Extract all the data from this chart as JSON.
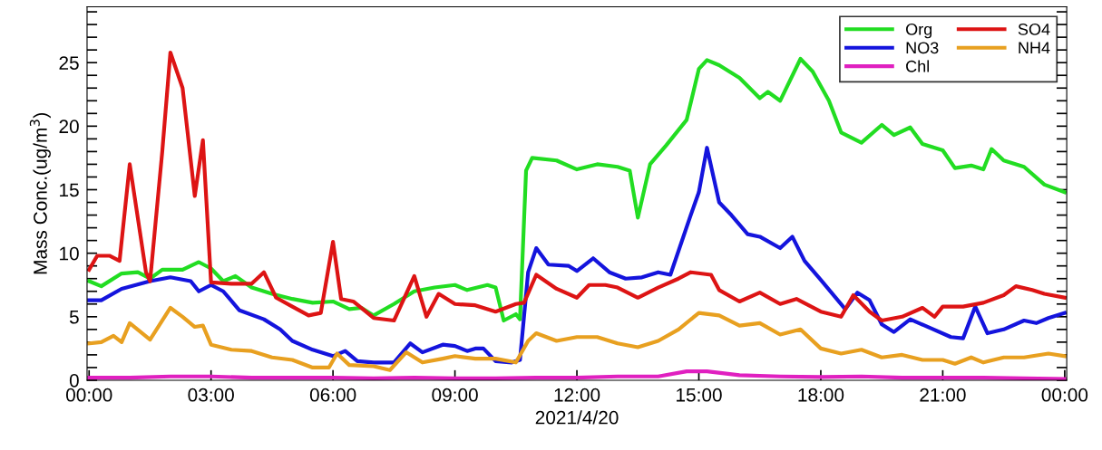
{
  "chart_data": {
    "type": "line",
    "xlabel": "2021/4/20",
    "ylabel": "Mass Conc.(ug/m$^{3}$)",
    "xlim": [
      -0.05,
      24.05
    ],
    "ylim": [
      0,
      29.4
    ],
    "xticks": [
      {
        "value": 0,
        "label": "00:00"
      },
      {
        "value": 3,
        "label": "03:00"
      },
      {
        "value": 6,
        "label": "06:00"
      },
      {
        "value": 9,
        "label": "09:00"
      },
      {
        "value": 12,
        "label": "12:00"
      },
      {
        "value": 15,
        "label": "15:00"
      },
      {
        "value": 18,
        "label": "18:00"
      },
      {
        "value": 21,
        "label": "21:00"
      },
      {
        "value": 24,
        "label": "00:00"
      }
    ],
    "yticks": [
      0,
      {
        "value": 1,
        "label": null
      },
      {
        "value": 2,
        "label": null
      },
      {
        "value": 3,
        "label": null
      },
      {
        "value": 4,
        "label": null
      },
      5,
      {
        "value": 6,
        "label": null
      },
      {
        "value": 7,
        "label": null
      },
      {
        "value": 8,
        "label": null
      },
      {
        "value": 9,
        "label": null
      },
      10,
      {
        "value": 11,
        "label": null
      },
      {
        "value": 12,
        "label": null
      },
      {
        "value": 13,
        "label": null
      },
      {
        "value": 14,
        "label": null
      },
      15,
      {
        "value": 16,
        "label": null
      },
      {
        "value": 17,
        "label": null
      },
      {
        "value": 18,
        "label": null
      },
      {
        "value": 19,
        "label": null
      },
      20,
      {
        "value": 21,
        "label": null
      },
      {
        "value": 22,
        "label": null
      },
      {
        "value": 23,
        "label": null
      },
      {
        "value": 24,
        "label": null
      },
      25,
      {
        "value": 26,
        "label": null
      },
      {
        "value": 27,
        "label": null
      },
      {
        "value": 28,
        "label": null
      },
      {
        "value": 29,
        "label": null
      }
    ],
    "grid": false,
    "legend": "top right",
    "marker": "none",
    "line_style": "solid",
    "series": [
      {
        "name": "Org",
        "color": "#22dd22",
        "x": [
          0,
          0.3,
          0.8,
          1.2,
          1.5,
          1.8,
          2.3,
          2.7,
          3.0,
          3.3,
          3.6,
          4.0,
          4.5,
          5.0,
          5.5,
          6.0,
          6.4,
          6.7,
          7.0,
          7.5,
          8.0,
          8.5,
          9.0,
          9.3,
          9.8,
          10.0,
          10.2,
          10.5,
          10.6,
          10.75,
          10.9,
          11.5,
          12.0,
          12.5,
          13.0,
          13.3,
          13.5,
          13.8,
          14.2,
          14.7,
          15.0,
          15.2,
          15.5,
          16.0,
          16.5,
          16.7,
          17.0,
          17.5,
          17.8,
          18.2,
          18.5,
          19.0,
          19.5,
          19.8,
          20.2,
          20.5,
          21.0,
          21.3,
          21.7,
          22.0,
          22.2,
          22.5,
          23.0,
          23.5,
          24.0
        ],
        "values": [
          7.8,
          7.4,
          8.4,
          8.5,
          8.0,
          8.7,
          8.7,
          9.3,
          8.8,
          7.8,
          8.2,
          7.3,
          6.8,
          6.4,
          6.1,
          6.2,
          5.6,
          5.7,
          5.1,
          6.0,
          7.0,
          7.3,
          7.5,
          7.1,
          7.5,
          7.3,
          4.7,
          5.2,
          4.8,
          16.5,
          17.5,
          17.3,
          16.6,
          17.0,
          16.8,
          16.5,
          12.8,
          17.0,
          18.5,
          20.5,
          24.5,
          25.2,
          24.8,
          23.8,
          22.2,
          22.7,
          22.0,
          25.3,
          24.3,
          22.0,
          19.5,
          18.7,
          20.1,
          19.3,
          19.9,
          18.6,
          18.1,
          16.7,
          16.9,
          16.6,
          18.2,
          17.3,
          16.8,
          15.4,
          14.8
        ]
      },
      {
        "name": "NO3",
        "color": "#1414dd",
        "x": [
          0,
          0.3,
          0.8,
          1.5,
          2.0,
          2.5,
          2.7,
          3.0,
          3.3,
          3.7,
          4.3,
          4.7,
          5.0,
          5.5,
          6.0,
          6.3,
          6.6,
          7.0,
          7.5,
          7.9,
          8.2,
          8.7,
          9.0,
          9.3,
          9.5,
          9.7,
          10.0,
          10.4,
          10.6,
          10.8,
          11.0,
          11.3,
          11.8,
          12.0,
          12.4,
          12.8,
          13.2,
          13.6,
          14.0,
          14.3,
          14.8,
          15.0,
          15.2,
          15.5,
          15.8,
          16.2,
          16.5,
          17.0,
          17.3,
          17.6,
          18.0,
          18.6,
          18.9,
          19.2,
          19.5,
          19.8,
          20.2,
          20.7,
          21.2,
          21.5,
          21.8,
          22.1,
          22.5,
          23.0,
          23.3,
          23.6,
          24.0
        ],
        "values": [
          6.3,
          6.3,
          7.2,
          7.8,
          8.1,
          7.8,
          7.0,
          7.5,
          7.0,
          5.5,
          4.8,
          4.0,
          3.1,
          2.4,
          1.9,
          2.3,
          1.5,
          1.4,
          1.4,
          2.9,
          2.2,
          2.8,
          2.7,
          2.3,
          2.5,
          2.5,
          1.5,
          1.4,
          1.6,
          8.5,
          10.4,
          9.1,
          9.0,
          8.6,
          9.6,
          8.5,
          8.0,
          8.1,
          8.5,
          8.3,
          13.0,
          14.8,
          18.3,
          14.0,
          13.0,
          11.5,
          11.3,
          10.4,
          11.3,
          9.4,
          7.9,
          5.6,
          6.9,
          6.3,
          4.4,
          3.8,
          4.8,
          4.1,
          3.4,
          3.3,
          5.8,
          3.7,
          4.0,
          4.7,
          4.5,
          4.9,
          5.3
        ]
      },
      {
        "name": "Chl",
        "color": "#e020c0",
        "x": [
          0,
          1,
          2,
          3,
          4,
          5,
          6,
          7,
          8,
          9,
          10,
          11,
          12,
          13,
          14,
          14.7,
          15.2,
          16,
          17,
          18,
          19,
          20,
          21,
          22,
          23,
          24
        ],
        "values": [
          0.2,
          0.2,
          0.3,
          0.3,
          0.2,
          0.2,
          0.2,
          0.15,
          0.2,
          0.15,
          0.15,
          0.2,
          0.2,
          0.3,
          0.3,
          0.7,
          0.7,
          0.4,
          0.3,
          0.25,
          0.3,
          0.2,
          0.2,
          0.2,
          0.15,
          0.1
        ]
      },
      {
        "name": "SO4",
        "color": "#dd1414",
        "x": [
          0,
          0.2,
          0.5,
          0.75,
          1.0,
          1.4,
          1.5,
          1.8,
          2.0,
          2.3,
          2.6,
          2.8,
          3.0,
          3.5,
          4.0,
          4.3,
          4.6,
          5.0,
          5.4,
          5.7,
          6.0,
          6.2,
          6.5,
          7.0,
          7.5,
          8.0,
          8.3,
          8.6,
          9.0,
          9.5,
          10.0,
          10.5,
          10.7,
          11.0,
          11.5,
          12.0,
          12.3,
          12.7,
          13.0,
          13.5,
          14.0,
          14.5,
          14.8,
          15.3,
          15.5,
          16.0,
          16.5,
          17.0,
          17.4,
          18.0,
          18.5,
          18.8,
          19.2,
          19.5,
          20.0,
          20.5,
          20.8,
          21.0,
          21.5,
          22.0,
          22.5,
          22.8,
          23.2,
          23.5,
          24.0
        ],
        "values": [
          8.7,
          9.8,
          9.8,
          9.4,
          17.0,
          8.5,
          7.8,
          18.0,
          25.8,
          23.0,
          14.5,
          18.9,
          7.7,
          7.6,
          7.6,
          8.5,
          6.5,
          5.8,
          5.1,
          5.3,
          10.9,
          6.4,
          6.2,
          4.9,
          4.7,
          8.2,
          5.0,
          6.8,
          6.0,
          5.9,
          5.4,
          6.0,
          6.1,
          8.3,
          7.2,
          6.5,
          7.5,
          7.5,
          7.3,
          6.5,
          7.3,
          8.0,
          8.5,
          8.3,
          7.1,
          6.2,
          6.9,
          6.0,
          6.4,
          5.4,
          5.0,
          6.7,
          5.4,
          4.7,
          5.0,
          5.7,
          5.0,
          5.8,
          5.8,
          6.1,
          6.7,
          7.4,
          7.1,
          6.8,
          6.5
        ]
      },
      {
        "name": "NH4",
        "color": "#e8a020",
        "x": [
          0,
          0.3,
          0.6,
          0.8,
          1.0,
          1.5,
          2.0,
          2.3,
          2.6,
          2.8,
          3.0,
          3.5,
          4.0,
          4.5,
          5.0,
          5.5,
          5.9,
          6.1,
          6.4,
          7.0,
          7.4,
          7.8,
          8.2,
          8.7,
          9.0,
          9.5,
          10.0,
          10.5,
          10.8,
          11.0,
          11.5,
          12.0,
          12.5,
          13.0,
          13.5,
          14.0,
          14.5,
          15.0,
          15.5,
          16.0,
          16.5,
          17.0,
          17.5,
          18.0,
          18.5,
          19.0,
          19.5,
          20.0,
          20.5,
          21.0,
          21.3,
          21.7,
          22.0,
          22.5,
          23.0,
          23.6,
          24.0
        ],
        "values": [
          2.9,
          3.0,
          3.5,
          3.0,
          4.5,
          3.2,
          5.7,
          5.0,
          4.2,
          4.3,
          2.8,
          2.4,
          2.3,
          1.8,
          1.6,
          1.0,
          1.0,
          2.1,
          1.2,
          1.1,
          0.8,
          2.2,
          1.4,
          1.7,
          1.9,
          1.7,
          1.7,
          1.4,
          3.1,
          3.7,
          3.1,
          3.4,
          3.4,
          2.9,
          2.6,
          3.1,
          4.0,
          5.3,
          5.1,
          4.3,
          4.5,
          3.6,
          4.0,
          2.5,
          2.1,
          2.4,
          1.8,
          2.0,
          1.6,
          1.6,
          1.3,
          1.8,
          1.4,
          1.8,
          1.8,
          2.1,
          1.9
        ]
      }
    ]
  }
}
